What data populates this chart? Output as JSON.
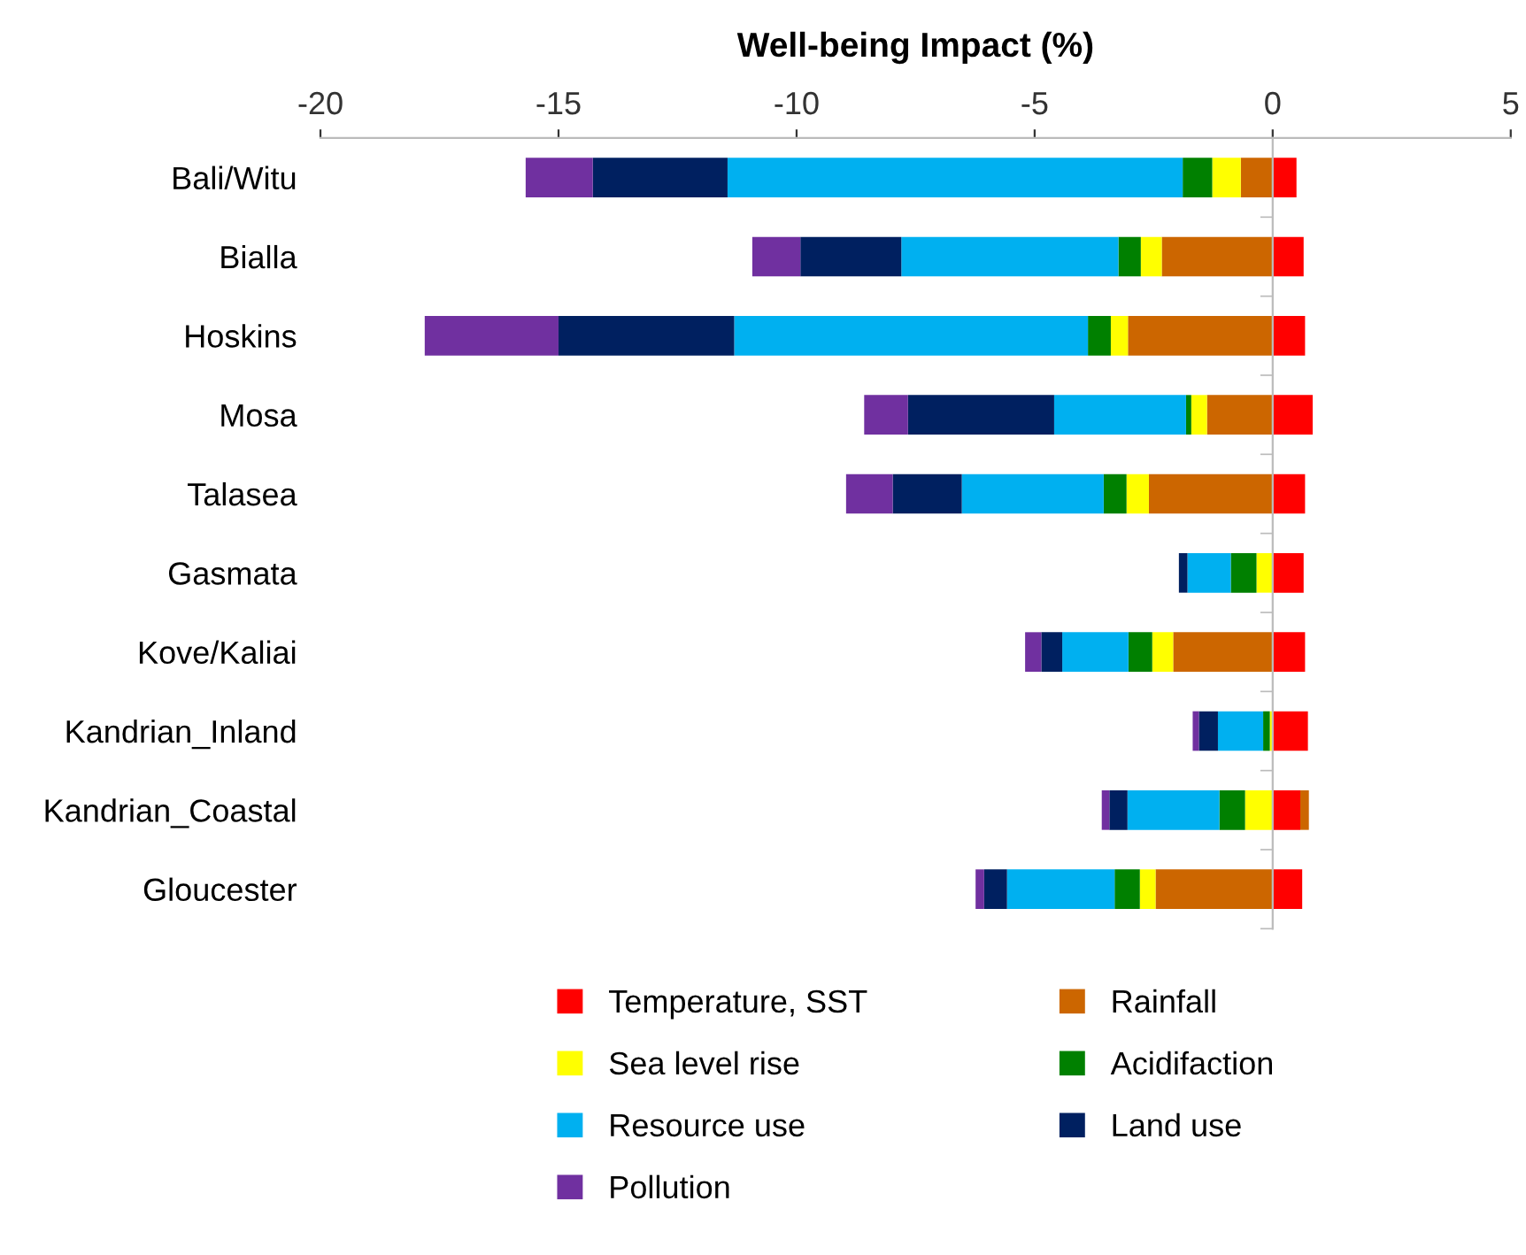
{
  "chart_data": {
    "type": "bar",
    "orientation": "horizontal",
    "stacked": true,
    "xlabel": "Well-being Impact (%)",
    "categories": [
      "Bali/Witu",
      "Bialla",
      "Hoskins",
      "Mosa",
      "Talasea",
      "Gasmata",
      "Kove/Kaliai",
      "Kandrian_Inland",
      "Kandrian_Coastal",
      "Gloucester"
    ],
    "series": [
      {
        "name": "Temperature, SST",
        "color": "#ff0000",
        "values": [
          0.5,
          0.65,
          0.68,
          0.84,
          0.68,
          0.65,
          0.68,
          0.74,
          0.58,
          0.62
        ]
      },
      {
        "name": "Rainfall",
        "color": "#cc6600",
        "values": [
          -0.67,
          -2.33,
          -3.04,
          -1.38,
          -2.6,
          0,
          -2.09,
          0,
          0.18,
          -2.46
        ]
      },
      {
        "name": "Sea level rise",
        "color": "#ffff00",
        "values": [
          -0.6,
          -0.44,
          -0.36,
          -0.33,
          -0.47,
          -0.34,
          -0.44,
          -0.06,
          -0.58,
          -0.33
        ]
      },
      {
        "name": "Acidifaction",
        "color": "#008000",
        "values": [
          -0.62,
          -0.47,
          -0.48,
          -0.11,
          -0.48,
          -0.54,
          -0.5,
          -0.14,
          -0.54,
          -0.53
        ]
      },
      {
        "name": "Resource use",
        "color": "#00b0f0",
        "values": [
          -9.56,
          -4.56,
          -7.43,
          -2.77,
          -2.98,
          -0.91,
          -1.39,
          -0.95,
          -1.93,
          -2.26
        ]
      },
      {
        "name": "Land use",
        "color": "#002060",
        "values": [
          -2.83,
          -2.12,
          -3.69,
          -3.07,
          -1.45,
          -0.18,
          -0.44,
          -0.4,
          -0.38,
          -0.48
        ]
      },
      {
        "name": "Pollution",
        "color": "#7030a0",
        "values": [
          -1.41,
          -1.01,
          -2.81,
          -0.92,
          -0.98,
          0,
          -0.34,
          -0.13,
          -0.16,
          -0.18
        ]
      }
    ],
    "xlim": [
      -20,
      5
    ],
    "xticks": [
      -20,
      -15,
      -10,
      -5,
      0,
      5
    ],
    "legend": "bottom"
  }
}
